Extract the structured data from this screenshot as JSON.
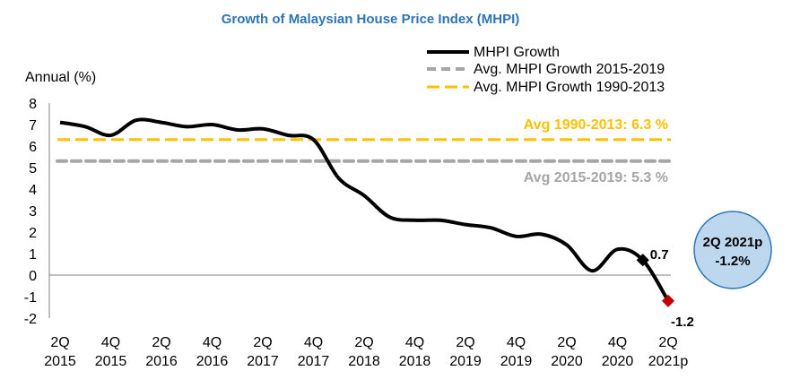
{
  "chart_data": {
    "type": "line",
    "title": "Growth of Malaysian House Price Index (MHPI)",
    "ylabel": "Annual (%)",
    "xlabel": "",
    "ylim": [
      -2,
      8
    ],
    "yticks": [
      -2,
      -1,
      0,
      1,
      2,
      3,
      4,
      5,
      6,
      7,
      8
    ],
    "grid": false,
    "legend_placement": "top-right",
    "x": [
      "2Q 2015",
      "3Q 2015",
      "4Q 2015",
      "1Q 2016",
      "2Q 2016",
      "3Q 2016",
      "4Q 2016",
      "1Q 2017",
      "2Q 2017",
      "3Q 2017",
      "4Q 2017",
      "1Q 2018",
      "2Q 2018",
      "3Q 2018",
      "4Q 2018",
      "1Q 2019",
      "2Q 2019",
      "3Q 2019",
      "4Q 2019",
      "1Q 2020",
      "2Q 2020",
      "3Q 2020",
      "4Q 2020",
      "1Q 2021",
      "2Q 2021p"
    ],
    "xtick_labels": [
      [
        "2Q",
        "2015"
      ],
      [
        "4Q",
        "2015"
      ],
      [
        "2Q",
        "2016"
      ],
      [
        "4Q",
        "2016"
      ],
      [
        "2Q",
        "2017"
      ],
      [
        "4Q",
        "2017"
      ],
      [
        "2Q",
        "2018"
      ],
      [
        "4Q",
        "2018"
      ],
      [
        "2Q",
        "2019"
      ],
      [
        "4Q",
        "2019"
      ],
      [
        "2Q",
        "2020"
      ],
      [
        "4Q",
        "2020"
      ],
      [
        "2Q",
        "2021p"
      ]
    ],
    "series": [
      {
        "name": "MHPI Growth",
        "color": "#000000",
        "values": [
          7.1,
          6.9,
          6.5,
          7.2,
          7.1,
          6.9,
          7.0,
          6.75,
          6.8,
          6.5,
          6.3,
          4.5,
          3.7,
          2.7,
          2.55,
          2.55,
          2.35,
          2.2,
          1.8,
          1.9,
          1.4,
          0.2,
          1.2,
          0.7,
          -1.2
        ]
      }
    ],
    "reference_lines": [
      {
        "name": "Avg. MHPI Growth 2015-2019",
        "value": 5.3,
        "color": "#a6a6a6",
        "label": "Avg 2015-2019: 5.3 %"
      },
      {
        "name": "Avg. MHPI Growth 1990-2013",
        "value": 6.3,
        "color": "#ffc000",
        "label": "Avg 1990-2013: 6.3 %"
      }
    ],
    "data_labels": [
      {
        "x": "1Q 2021",
        "value": "0.7",
        "marker_color": "#000000"
      },
      {
        "x": "2Q 2021p",
        "value": "-1.2",
        "marker_color": "#c00000"
      }
    ],
    "callout": {
      "line1": "2Q 2021p",
      "line2": "-1.2%",
      "fill": "#bdd7ee",
      "border": "#2e75b6"
    },
    "title_color": "#2e75b6"
  }
}
